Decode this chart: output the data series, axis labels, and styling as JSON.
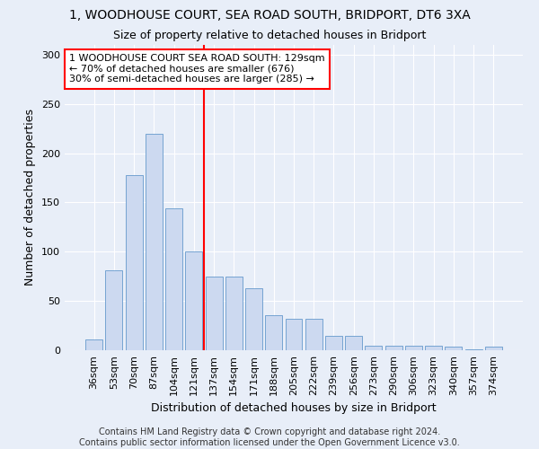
{
  "title1": "1, WOODHOUSE COURT, SEA ROAD SOUTH, BRIDPORT, DT6 3XA",
  "title2": "Size of property relative to detached houses in Bridport",
  "xlabel": "Distribution of detached houses by size in Bridport",
  "ylabel": "Number of detached properties",
  "categories": [
    "36sqm",
    "53sqm",
    "70sqm",
    "87sqm",
    "104sqm",
    "121sqm",
    "137sqm",
    "154sqm",
    "171sqm",
    "188sqm",
    "205sqm",
    "222sqm",
    "239sqm",
    "256sqm",
    "273sqm",
    "290sqm",
    "306sqm",
    "323sqm",
    "340sqm",
    "357sqm",
    "374sqm"
  ],
  "values": [
    11,
    81,
    178,
    220,
    144,
    100,
    75,
    75,
    63,
    36,
    32,
    32,
    15,
    15,
    5,
    5,
    5,
    5,
    4,
    1,
    4
  ],
  "bar_color": "#ccd9f0",
  "bar_edge_color": "#6699cc",
  "vline_x_index": 5,
  "vline_color": "red",
  "annotation_text": "1 WOODHOUSE COURT SEA ROAD SOUTH: 129sqm\n← 70% of detached houses are smaller (676)\n30% of semi-detached houses are larger (285) →",
  "annotation_box_color": "white",
  "annotation_box_edge_color": "red",
  "ylim": [
    0,
    310
  ],
  "yticks": [
    0,
    50,
    100,
    150,
    200,
    250,
    300
  ],
  "footer1": "Contains HM Land Registry data © Crown copyright and database right 2024.",
  "footer2": "Contains public sector information licensed under the Open Government Licence v3.0.",
  "bg_color": "#e8eef8",
  "plot_bg_color": "#e8eef8",
  "title1_fontsize": 10,
  "title2_fontsize": 9,
  "ylabel_fontsize": 9,
  "xlabel_fontsize": 9,
  "tick_fontsize": 8,
  "annot_fontsize": 8,
  "footer_fontsize": 7
}
